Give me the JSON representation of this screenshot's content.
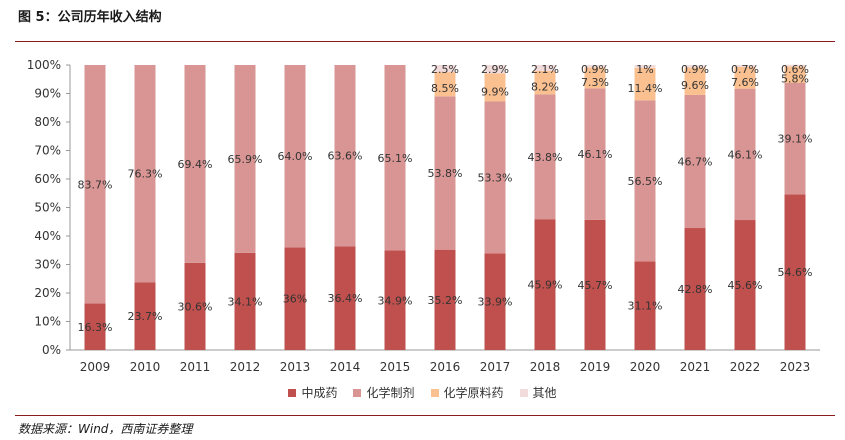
{
  "figure_title": "图 5：公司历年收入结构",
  "source": "数据来源：Wind，西南证券整理",
  "colors": {
    "tcm": "#c0504d",
    "chem_drug": "#d99594",
    "api": "#fac090",
    "other": "#f2dcdb"
  },
  "chart_data": {
    "type": "bar",
    "stacked": true,
    "percent": true,
    "categories": [
      "2009",
      "2010",
      "2011",
      "2012",
      "2013",
      "2014",
      "2015",
      "2016",
      "2017",
      "2018",
      "2019",
      "2020",
      "2021",
      "2022",
      "2023"
    ],
    "series": [
      {
        "name": "中成药",
        "values": [
          16.3,
          23.7,
          30.6,
          34.1,
          36.0,
          36.4,
          34.9,
          35.2,
          33.9,
          45.9,
          45.7,
          31.1,
          42.8,
          45.6,
          54.6
        ],
        "labels": [
          "16.3%",
          "23.7%",
          "30.6%",
          "34.1%",
          "36%",
          "36.4%",
          "34.9%",
          "35.2%",
          "33.9%",
          "45.9%",
          "45.7%",
          "31.1%",
          "42.8%",
          "45.6%",
          "54.6%"
        ]
      },
      {
        "name": "化学制剂",
        "values": [
          83.7,
          76.3,
          69.4,
          65.9,
          64.0,
          63.6,
          65.1,
          53.8,
          53.3,
          43.8,
          46.1,
          56.5,
          46.7,
          46.1,
          39.1
        ],
        "labels": [
          "83.7%",
          "76.3%",
          "69.4%",
          "65.9%",
          "64.0%",
          "63.6%",
          "65.1%",
          "53.8%",
          "53.3%",
          "43.8%",
          "46.1%",
          "56.5%",
          "46.7%",
          "46.1%",
          "39.1%"
        ]
      },
      {
        "name": "化学原料药",
        "values": [
          0,
          0,
          0,
          0,
          0,
          0,
          0,
          8.5,
          9.9,
          8.2,
          7.3,
          11.4,
          9.6,
          7.6,
          5.8
        ],
        "labels": [
          "",
          "",
          "",
          "",
          "",
          "",
          "",
          "8.5%",
          "9.9%",
          "8.2%",
          "7.3%",
          "11.4%",
          "9.6%",
          "7.6%",
          "5.8%"
        ]
      },
      {
        "name": "其他",
        "values": [
          0,
          0,
          0,
          0,
          0,
          0,
          0,
          2.5,
          2.9,
          2.1,
          0.9,
          1.0,
          0.9,
          0.7,
          0.6
        ],
        "labels": [
          "",
          "",
          "",
          "",
          "",
          "",
          "",
          "2.5%",
          "2.9%",
          "2.1%",
          "0.9%",
          "1%",
          "0.9%",
          "0.7%",
          "0.6%"
        ]
      }
    ],
    "y_ticks": [
      "0%",
      "10%",
      "20%",
      "30%",
      "40%",
      "50%",
      "60%",
      "70%",
      "80%",
      "90%",
      "100%"
    ],
    "ylim": [
      0,
      100
    ],
    "legend_position": "bottom",
    "grid": false
  }
}
